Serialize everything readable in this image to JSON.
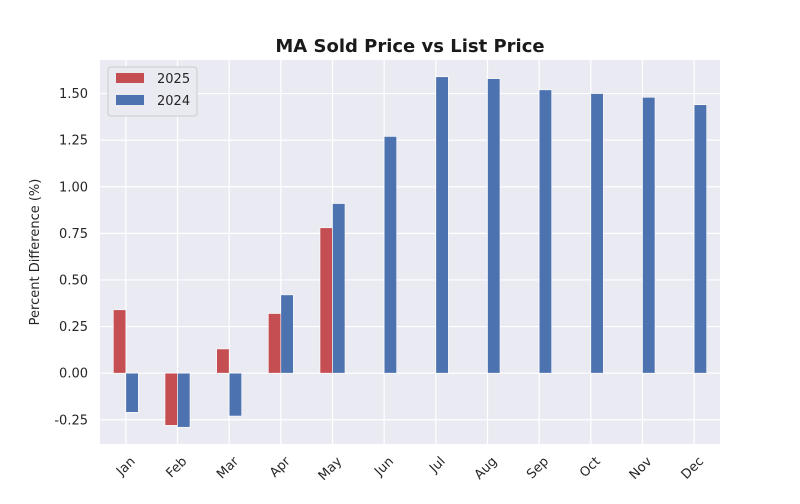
{
  "chart_data": {
    "type": "bar",
    "title": "MA Sold Price vs List Price",
    "xlabel": "",
    "ylabel": "Percent Difference (%)",
    "categories": [
      "Jan",
      "Feb",
      "Mar",
      "Apr",
      "May",
      "Jun",
      "Jul",
      "Aug",
      "Sep",
      "Oct",
      "Nov",
      "Dec"
    ],
    "series": [
      {
        "name": "2025",
        "color": "#c44e52",
        "values": [
          0.34,
          -0.28,
          0.13,
          0.32,
          0.78,
          null,
          null,
          null,
          null,
          null,
          null,
          null
        ]
      },
      {
        "name": "2024",
        "color": "#4c72b0",
        "values": [
          -0.21,
          -0.29,
          -0.23,
          0.42,
          0.91,
          1.27,
          1.59,
          1.58,
          1.52,
          1.5,
          1.48,
          1.44
        ]
      }
    ],
    "ylim": [
      -0.38,
      1.68
    ],
    "yticks": [
      "-0.25",
      "0.00",
      "0.25",
      "0.50",
      "0.75",
      "1.00",
      "1.25",
      "1.50"
    ],
    "grid": true,
    "legend_position": "top-left",
    "background": "#eaeaf2"
  }
}
